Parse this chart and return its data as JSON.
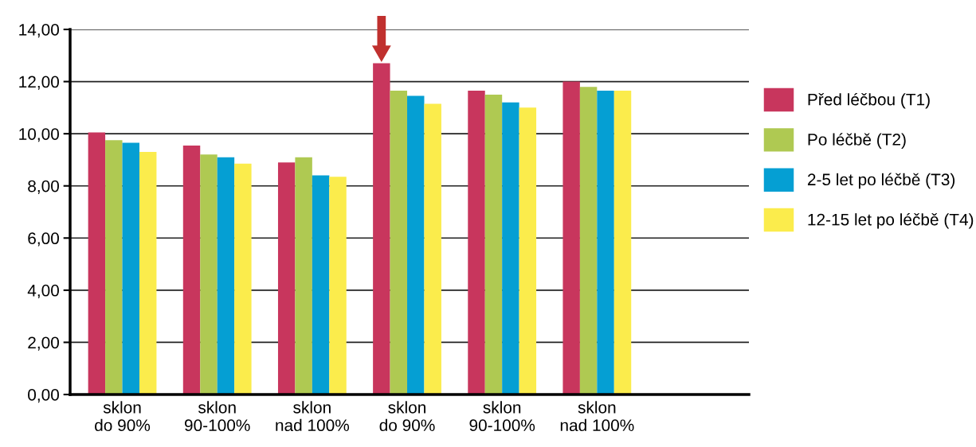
{
  "chart_data": {
    "type": "bar",
    "categories": [
      "sklon\ndo 90%",
      "sklon\n90-100%",
      "sklon\nnad 100%",
      "sklon\ndo 90%",
      "sklon\n90-100%",
      "sklon\nnad 100%"
    ],
    "series": [
      {
        "name": "Před léčbou (T1)",
        "color": "#c8365d",
        "values": [
          10.05,
          9.55,
          8.9,
          12.7,
          11.65,
          12.0
        ]
      },
      {
        "name": "Po léčbě (T2)",
        "color": "#afc952",
        "values": [
          9.75,
          9.2,
          9.1,
          11.65,
          11.5,
          11.8
        ]
      },
      {
        "name": "2-5 let po léčbě (T3)",
        "color": "#059fd3",
        "values": [
          9.65,
          9.1,
          8.4,
          11.45,
          11.2,
          11.65
        ]
      },
      {
        "name": "12-15 let po léčbě (T4)",
        "color": "#fbec4c",
        "values": [
          9.3,
          8.85,
          8.35,
          11.15,
          11.0,
          11.65
        ]
      }
    ],
    "ylim": [
      0,
      14
    ],
    "yticks": [
      {
        "value": 0,
        "label": "0,00"
      },
      {
        "value": 2,
        "label": "2,00"
      },
      {
        "value": 4,
        "label": "4,00"
      },
      {
        "value": 6,
        "label": "6,00"
      },
      {
        "value": 8,
        "label": "8,00"
      },
      {
        "value": 10,
        "label": "10,00"
      },
      {
        "value": 12,
        "label": "12,00"
      },
      {
        "value": 14,
        "label": "14,00"
      }
    ],
    "grid": "y",
    "legend": "right"
  }
}
